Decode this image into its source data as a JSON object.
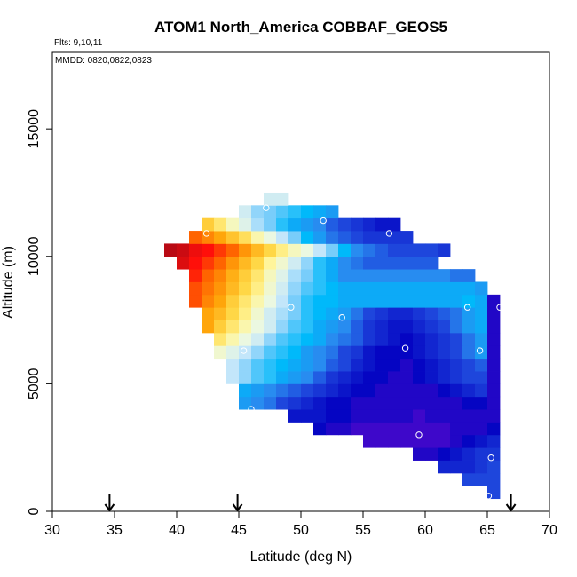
{
  "chart_data": {
    "type": "heatmap",
    "title": "ATOM1 North_America COBBAF_GEOS5",
    "flights_text": "Flts: 9,10,11",
    "dates_text": "MMDD: 0820,0822,0823",
    "xlabel": "Latitude (deg N)",
    "ylabel": "Altitude (m)",
    "xlim": [
      30,
      70
    ],
    "ylim": [
      0,
      18000
    ],
    "x_ticks": [
      30,
      35,
      40,
      45,
      50,
      55,
      60,
      65,
      70
    ],
    "y_ticks": [
      0,
      5000,
      10000,
      15000
    ],
    "grid": false,
    "cell_size": {
      "dlat": 1.0,
      "dalt": 500
    },
    "profile_markers_lat": [
      34.6,
      44.9,
      66.9
    ],
    "rows": [
      {
        "alt0": 500,
        "lat0": 65.0,
        "values": [
          0.12
        ]
      },
      {
        "alt0": 1000,
        "lat0": 63.0,
        "values": [
          0.12,
          0.12,
          0.12
        ]
      },
      {
        "alt0": 1500,
        "lat0": 61.0,
        "values": [
          0.1,
          0.1,
          0.1,
          0.11,
          0.12
        ]
      },
      {
        "alt0": 2000,
        "lat0": 59.0,
        "values": [
          0.07,
          0.07,
          0.08,
          0.09,
          0.1,
          0.11,
          0.11
        ]
      },
      {
        "alt0": 2500,
        "lat0": 55.0,
        "values": [
          0.06,
          0.06,
          0.06,
          0.06,
          0.06,
          0.06,
          0.06,
          0.07,
          0.08,
          0.09,
          0.1
        ]
      },
      {
        "alt0": 3000,
        "lat0": 51.0,
        "values": [
          0.08,
          0.07,
          0.07,
          0.06,
          0.06,
          0.06,
          0.06,
          0.06,
          0.06,
          0.06,
          0.06,
          0.07,
          0.07,
          0.07,
          0.08
        ]
      },
      {
        "alt0": 3500,
        "lat0": 49.0,
        "values": [
          0.09,
          0.09,
          0.09,
          0.08,
          0.08,
          0.07,
          0.07,
          0.07,
          0.07,
          0.07,
          0.06,
          0.07,
          0.07,
          0.07,
          0.07,
          0.07,
          0.07
        ]
      },
      {
        "alt0": 4000,
        "lat0": 45.0,
        "values": [
          0.16,
          0.15,
          0.14,
          0.12,
          0.11,
          0.1,
          0.09,
          0.08,
          0.08,
          0.07,
          0.07,
          0.07,
          0.07,
          0.07,
          0.07,
          0.07,
          0.07,
          0.07,
          0.08,
          0.08,
          0.07
        ]
      },
      {
        "alt0": 4500,
        "lat0": 45.0,
        "values": [
          0.17,
          0.16,
          0.15,
          0.14,
          0.13,
          0.12,
          0.11,
          0.1,
          0.09,
          0.08,
          0.08,
          0.07,
          0.07,
          0.07,
          0.07,
          0.07,
          0.08,
          0.09,
          0.1,
          0.11,
          0.07
        ]
      },
      {
        "alt0": 5000,
        "lat0": 44.0,
        "values": [
          0.24,
          0.22,
          0.2,
          0.19,
          0.17,
          0.16,
          0.15,
          0.13,
          0.11,
          0.1,
          0.09,
          0.08,
          0.08,
          0.07,
          0.07,
          0.08,
          0.09,
          0.1,
          0.11,
          0.12,
          0.12,
          0.07
        ]
      },
      {
        "alt0": 5500,
        "lat0": 44.0,
        "values": [
          0.24,
          0.22,
          0.2,
          0.19,
          0.18,
          0.17,
          0.16,
          0.15,
          0.13,
          0.12,
          0.1,
          0.09,
          0.08,
          0.08,
          0.07,
          0.08,
          0.09,
          0.1,
          0.11,
          0.12,
          0.13,
          0.07
        ]
      },
      {
        "alt0": 6000,
        "lat0": 43.0,
        "values": [
          0.28,
          0.26,
          0.24,
          0.22,
          0.2,
          0.19,
          0.18,
          0.16,
          0.15,
          0.14,
          0.12,
          0.11,
          0.09,
          0.08,
          0.08,
          0.08,
          0.09,
          0.1,
          0.11,
          0.12,
          0.14,
          0.16,
          0.07
        ]
      },
      {
        "alt0": 6500,
        "lat0": 43.0,
        "values": [
          0.33,
          0.3,
          0.27,
          0.25,
          0.22,
          0.2,
          0.19,
          0.18,
          0.17,
          0.15,
          0.14,
          0.13,
          0.11,
          0.1,
          0.09,
          0.08,
          0.09,
          0.1,
          0.11,
          0.12,
          0.14,
          0.16,
          0.07
        ]
      },
      {
        "alt0": 7000,
        "lat0": 42.0,
        "values": [
          0.4,
          0.36,
          0.33,
          0.3,
          0.27,
          0.25,
          0.22,
          0.2,
          0.19,
          0.17,
          0.16,
          0.15,
          0.13,
          0.11,
          0.1,
          0.09,
          0.09,
          0.1,
          0.11,
          0.12,
          0.14,
          0.16,
          0.17,
          0.07
        ]
      },
      {
        "alt0": 7500,
        "lat0": 42.0,
        "values": [
          0.4,
          0.38,
          0.35,
          0.32,
          0.28,
          0.25,
          0.23,
          0.21,
          0.19,
          0.18,
          0.17,
          0.16,
          0.14,
          0.12,
          0.11,
          0.1,
          0.1,
          0.11,
          0.12,
          0.13,
          0.14,
          0.16,
          0.17,
          0.07
        ]
      },
      {
        "alt0": 8000,
        "lat0": 41.0,
        "values": [
          0.45,
          0.42,
          0.4,
          0.36,
          0.33,
          0.3,
          0.27,
          0.24,
          0.21,
          0.19,
          0.18,
          0.18,
          0.17,
          0.17,
          0.17,
          0.17,
          0.17,
          0.17,
          0.17,
          0.17,
          0.17,
          0.17,
          0.18,
          0.17,
          0.07
        ]
      },
      {
        "alt0": 8500,
        "lat0": 41.0,
        "values": [
          0.45,
          0.43,
          0.41,
          0.38,
          0.35,
          0.32,
          0.28,
          0.25,
          0.22,
          0.2,
          0.19,
          0.18,
          0.17,
          0.17,
          0.17,
          0.17,
          0.17,
          0.17,
          0.17,
          0.17,
          0.17,
          0.17,
          0.17,
          0.16
        ]
      },
      {
        "alt0": 9000,
        "lat0": 41.0,
        "values": [
          0.47,
          0.44,
          0.42,
          0.39,
          0.36,
          0.33,
          0.29,
          0.26,
          0.23,
          0.21,
          0.19,
          0.17,
          0.15,
          0.15,
          0.15,
          0.15,
          0.15,
          0.15,
          0.15,
          0.15,
          0.15,
          0.14,
          0.14
        ]
      },
      {
        "alt0": 9500,
        "lat0": 40.0,
        "values": [
          0.5,
          0.48,
          0.46,
          0.44,
          0.41,
          0.38,
          0.35,
          0.31,
          0.28,
          0.25,
          0.22,
          0.19,
          0.17,
          0.15,
          0.14,
          0.13,
          0.13,
          0.13,
          0.13,
          0.13,
          0.13
        ]
      },
      {
        "alt0": 10000,
        "lat0": 39.0,
        "values": [
          0.52,
          0.51,
          0.49,
          0.48,
          0.46,
          0.44,
          0.41,
          0.38,
          0.35,
          0.32,
          0.29,
          0.27,
          0.24,
          0.21,
          0.18,
          0.15,
          0.14,
          0.13,
          0.12,
          0.12,
          0.12,
          0.12,
          0.11
        ]
      },
      {
        "alt0": 10500,
        "lat0": 41.0,
        "values": [
          0.44,
          0.42,
          0.4,
          0.37,
          0.34,
          0.3,
          0.27,
          0.24,
          0.21,
          0.18,
          0.16,
          0.14,
          0.13,
          0.12,
          0.11,
          0.11,
          0.11,
          0.11
        ]
      },
      {
        "alt0": 11000,
        "lat0": 42.0,
        "values": [
          0.36,
          0.33,
          0.29,
          0.26,
          0.23,
          0.21,
          0.19,
          0.17,
          0.16,
          0.15,
          0.13,
          0.12,
          0.11,
          0.1,
          0.09,
          0.09
        ]
      },
      {
        "alt0": 11500,
        "lat0": 45.0,
        "values": [
          0.25,
          0.22,
          0.21,
          0.2,
          0.19,
          0.18,
          0.17,
          0.16
        ]
      },
      {
        "alt0": 12000,
        "lat0": 47.0,
        "values": [
          0.25,
          0.25
        ]
      }
    ],
    "observation_points": [
      {
        "lat": 39.0,
        "alt": 9600
      },
      {
        "lat": 42.4,
        "alt": 10900
      },
      {
        "lat": 47.2,
        "alt": 11900
      },
      {
        "lat": 51.8,
        "alt": 11400
      },
      {
        "lat": 57.1,
        "alt": 10900
      },
      {
        "lat": 49.2,
        "alt": 8000
      },
      {
        "lat": 53.3,
        "alt": 7600
      },
      {
        "lat": 63.4,
        "alt": 8000
      },
      {
        "lat": 66.0,
        "alt": 8000
      },
      {
        "lat": 45.4,
        "alt": 6300
      },
      {
        "lat": 58.4,
        "alt": 6400
      },
      {
        "lat": 64.4,
        "alt": 6300
      },
      {
        "lat": 46.0,
        "alt": 4000
      },
      {
        "lat": 50.5,
        "alt": 3200
      },
      {
        "lat": 59.5,
        "alt": 3000
      },
      {
        "lat": 65.3,
        "alt": 2100
      },
      {
        "lat": 59.2,
        "alt": 1700
      },
      {
        "lat": 65.1,
        "alt": 600
      }
    ]
  }
}
